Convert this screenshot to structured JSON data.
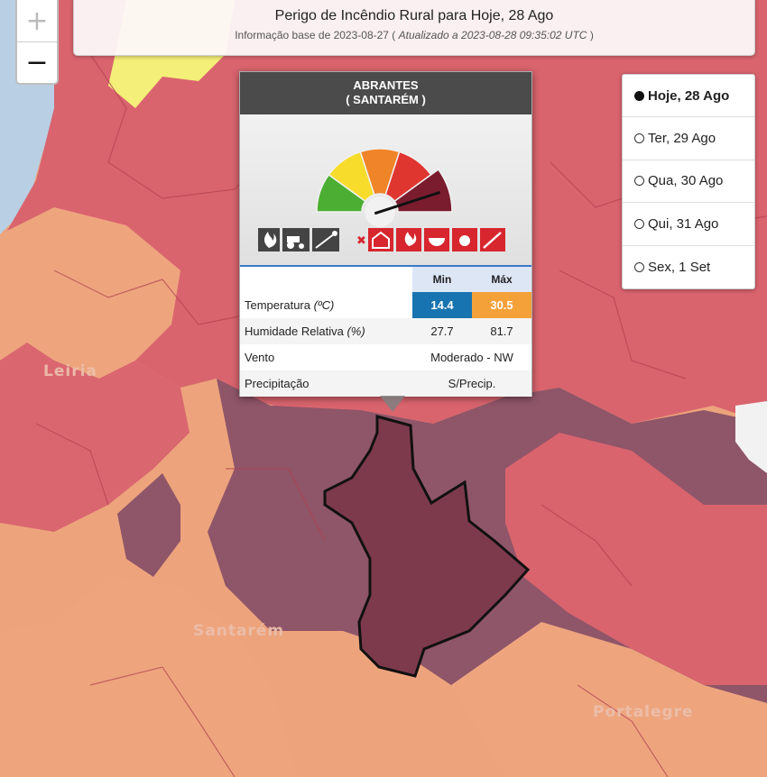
{
  "header": {
    "title": "Perigo de Incêndio Rural para Hoje, 28 Ago",
    "sub_prefix": "Informação base de 2023-08-27 (",
    "sub_italic": "Atualizado a 2023-08-28 09:35:02 UTC",
    "sub_suffix": ")"
  },
  "zoom": {
    "in_label": "+",
    "out_label": "−"
  },
  "days": [
    {
      "label": "Hoje, 28 Ago",
      "selected": true
    },
    {
      "label": "Ter, 29 Ago",
      "selected": false
    },
    {
      "label": "Qua, 30 Ago",
      "selected": false
    },
    {
      "label": "Qui, 31 Ago",
      "selected": false
    },
    {
      "label": "Sex, 1 Set",
      "selected": false
    }
  ],
  "map_labels": {
    "leiria": "Leiria",
    "santarem": "Santarém",
    "portalegre": "Portalegre"
  },
  "popup": {
    "municipality": "ABRANTES",
    "district": "( SANTARÉM )",
    "danger_level": 5,
    "danger_levels_total": 5,
    "gauge_colors": [
      "#4caf33",
      "#f7dc2c",
      "#f08428",
      "#e03630",
      "#7a1c2e"
    ],
    "allowed_icons": [
      "fire-icon",
      "tractor-icon",
      "rocket-icon"
    ],
    "forbidden_icons": [
      "burning-house-icon",
      "campfire-icon",
      "barbecue-icon",
      "smoker-icon",
      "firework-icon"
    ],
    "table": {
      "col_min": "Min",
      "col_max": "Máx",
      "rows": [
        {
          "label": "Temperatura ",
          "unit": "(ºC)",
          "min": "14.4",
          "max": "30.5"
        },
        {
          "label": "Humidade Relativa ",
          "unit": "(%)",
          "min": "27.7",
          "max": "81.7"
        },
        {
          "label": "Vento",
          "unit": "",
          "value": "Moderado - NW"
        },
        {
          "label": "Precipitação",
          "unit": "",
          "value": "S/Precip."
        }
      ]
    }
  },
  "colors": {
    "danger_very_high": "#d9636e",
    "danger_maximum": "#8e5469",
    "danger_high": "#eda47c",
    "danger_moderate": "#f5f07a",
    "selected_region": "#7e3a4d"
  }
}
